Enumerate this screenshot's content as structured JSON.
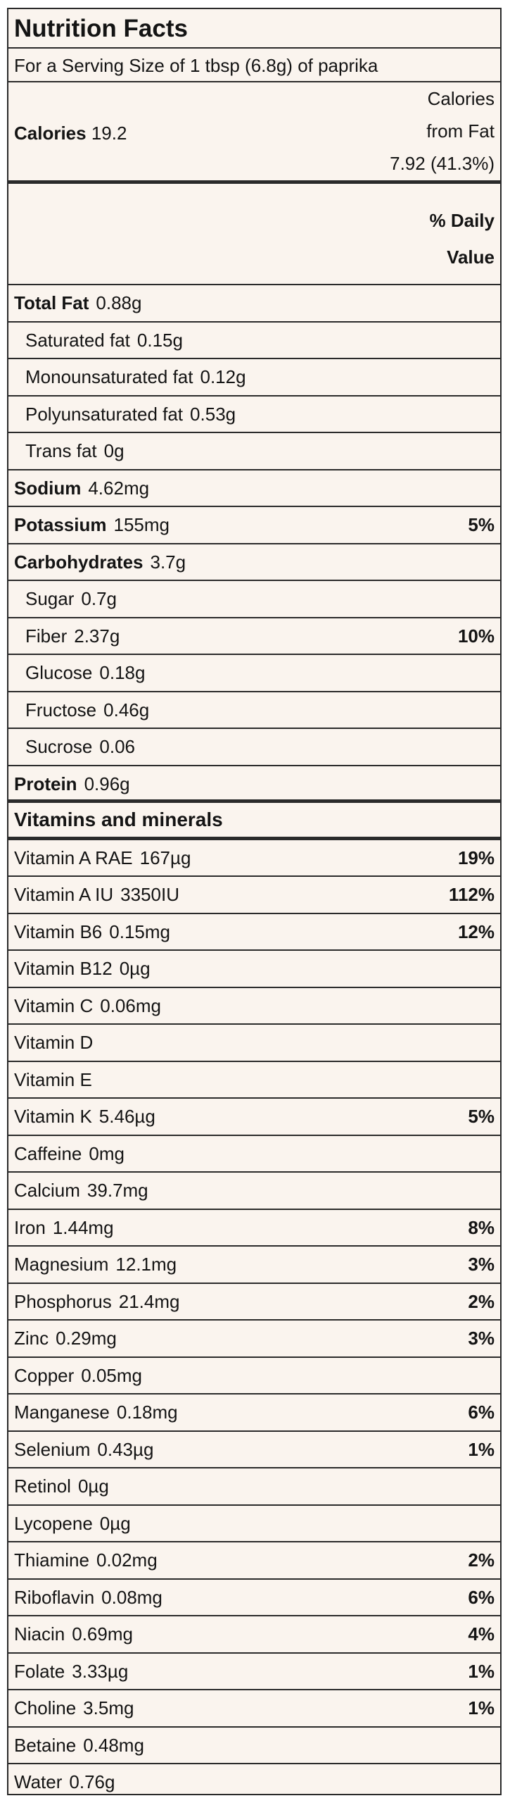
{
  "title": "Nutrition Facts",
  "serving": "For a Serving Size of 1 tbsp (6.8g) of paprika",
  "calories": {
    "label": "Calories",
    "value": "19.2",
    "fat_label_line1": "Calories",
    "fat_label_line2": "from Fat",
    "fat_value": "7.92 (41.3%)"
  },
  "daily_value": {
    "line1": "% Daily",
    "line2": "Value"
  },
  "nutrients": [
    {
      "name": "Total Fat",
      "amount": "0.88g",
      "pct": "",
      "bold": true,
      "sub": false
    },
    {
      "name": "Saturated fat",
      "amount": "0.15g",
      "pct": "",
      "bold": false,
      "sub": true
    },
    {
      "name": "Monounsaturated fat",
      "amount": "0.12g",
      "pct": "",
      "bold": false,
      "sub": true
    },
    {
      "name": "Polyunsaturated fat",
      "amount": "0.53g",
      "pct": "",
      "bold": false,
      "sub": true
    },
    {
      "name": "Trans fat",
      "amount": "0g",
      "pct": "",
      "bold": false,
      "sub": true
    },
    {
      "name": "Sodium",
      "amount": "4.62mg",
      "pct": "",
      "bold": true,
      "sub": false
    },
    {
      "name": "Potassium",
      "amount": "155mg",
      "pct": "5%",
      "bold": true,
      "sub": false
    },
    {
      "name": "Carbohydrates",
      "amount": "3.7g",
      "pct": "",
      "bold": true,
      "sub": false
    },
    {
      "name": "Sugar",
      "amount": "0.7g",
      "pct": "",
      "bold": false,
      "sub": true
    },
    {
      "name": "Fiber",
      "amount": "2.37g",
      "pct": "10%",
      "bold": false,
      "sub": true
    },
    {
      "name": "Glucose",
      "amount": "0.18g",
      "pct": "",
      "bold": false,
      "sub": true
    },
    {
      "name": "Fructose",
      "amount": "0.46g",
      "pct": "",
      "bold": false,
      "sub": true
    },
    {
      "name": "Sucrose",
      "amount": "0.06",
      "pct": "",
      "bold": false,
      "sub": true
    },
    {
      "name": "Protein",
      "amount": "0.96g",
      "pct": "",
      "bold": true,
      "sub": false
    }
  ],
  "vitamins_heading": "Vitamins and minerals",
  "vitamins": [
    {
      "name": "Vitamin A RAE",
      "amount": "167µg",
      "pct": "19%"
    },
    {
      "name": "Vitamin A IU",
      "amount": "3350IU",
      "pct": "112%"
    },
    {
      "name": "Vitamin B6",
      "amount": "0.15mg",
      "pct": "12%"
    },
    {
      "name": "Vitamin B12",
      "amount": "0µg",
      "pct": ""
    },
    {
      "name": "Vitamin C",
      "amount": "0.06mg",
      "pct": ""
    },
    {
      "name": "Vitamin D",
      "amount": "",
      "pct": ""
    },
    {
      "name": "Vitamin E",
      "amount": "",
      "pct": ""
    },
    {
      "name": "Vitamin K",
      "amount": "5.46µg",
      "pct": "5%"
    },
    {
      "name": "Caffeine",
      "amount": "0mg",
      "pct": ""
    },
    {
      "name": "Calcium",
      "amount": "39.7mg",
      "pct": ""
    },
    {
      "name": "Iron",
      "amount": "1.44mg",
      "pct": "8%"
    },
    {
      "name": "Magnesium",
      "amount": "12.1mg",
      "pct": "3%"
    },
    {
      "name": "Phosphorus",
      "amount": "21.4mg",
      "pct": "2%"
    },
    {
      "name": "Zinc",
      "amount": "0.29mg",
      "pct": "3%"
    },
    {
      "name": "Copper",
      "amount": "0.05mg",
      "pct": ""
    },
    {
      "name": "Manganese",
      "amount": "0.18mg",
      "pct": "6%"
    },
    {
      "name": "Selenium",
      "amount": "0.43µg",
      "pct": "1%"
    },
    {
      "name": "Retinol",
      "amount": "0µg",
      "pct": ""
    },
    {
      "name": "Lycopene",
      "amount": "0µg",
      "pct": ""
    },
    {
      "name": "Thiamine",
      "amount": "0.02mg",
      "pct": "2%"
    },
    {
      "name": "Riboflavin",
      "amount": "0.08mg",
      "pct": "6%"
    },
    {
      "name": "Niacin",
      "amount": "0.69mg",
      "pct": "4%"
    },
    {
      "name": "Folate",
      "amount": "3.33µg",
      "pct": "1%"
    },
    {
      "name": "Choline",
      "amount": "3.5mg",
      "pct": "1%"
    },
    {
      "name": "Betaine",
      "amount": "0.48mg",
      "pct": ""
    },
    {
      "name": "Water",
      "amount": "0.76g",
      "pct": ""
    }
  ],
  "colors": {
    "background": "#faf4ee",
    "border": "#2a2a2a",
    "text": "#141414"
  }
}
